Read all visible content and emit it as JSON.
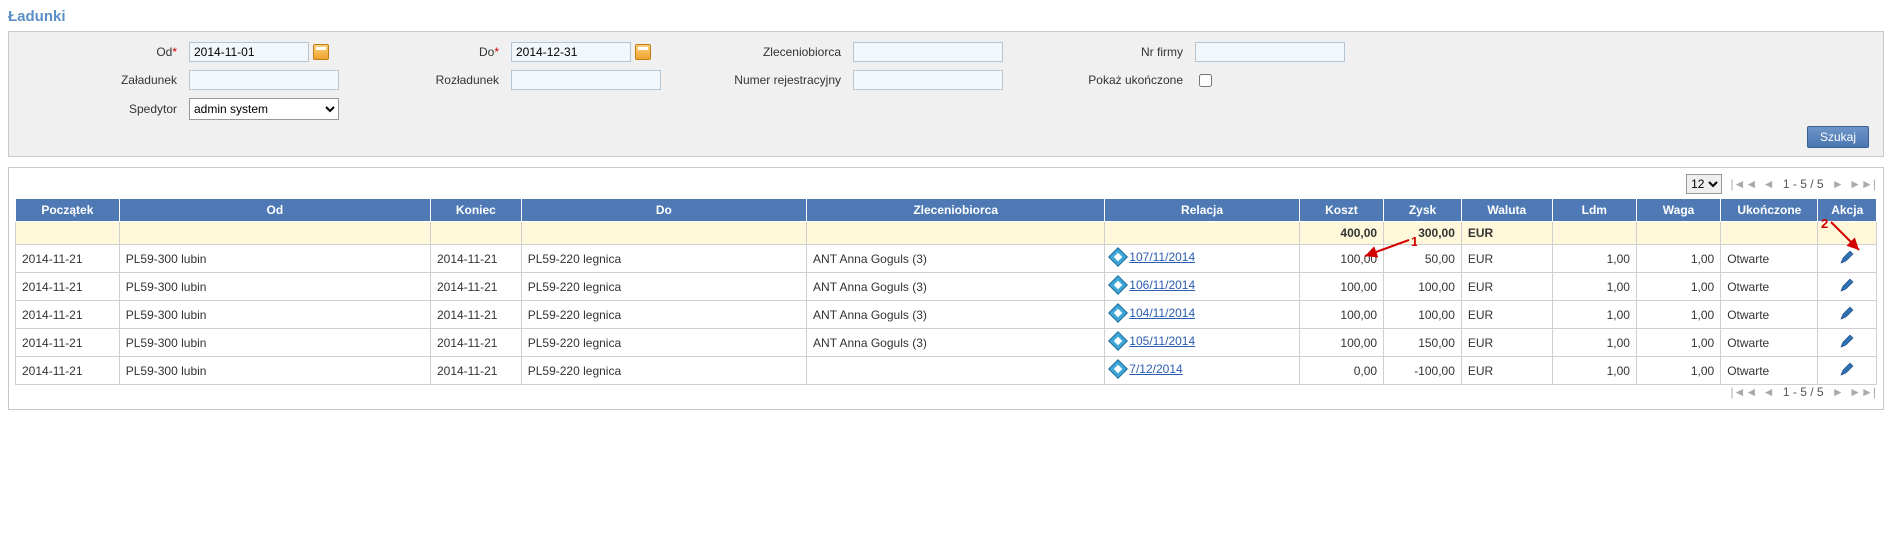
{
  "title": "Ładunki",
  "filters": {
    "od_label": "Od",
    "od_value": "2014-11-01",
    "do_label": "Do",
    "do_value": "2014-12-31",
    "zleceniobiorca_label": "Zleceniobiorca",
    "zleceniobiorca_value": "",
    "nrfirmy_label": "Nr firmy",
    "nrfirmy_value": "",
    "zaladunek_label": "Załadunek",
    "zaladunek_value": "",
    "rozladunek_label": "Rozładunek",
    "rozladunek_value": "",
    "numer_label": "Numer rejestracyjny",
    "numer_value": "",
    "pokaz_label": "Pokaż ukończone",
    "pokaz_checked": false,
    "spedytor_label": "Spedytor",
    "spedytor_value": "admin system",
    "search_label": "Szukaj"
  },
  "pager": {
    "page_size": "12",
    "range": "1 - 5 / 5"
  },
  "columns": {
    "start": "Początek",
    "from": "Od",
    "end": "Koniec",
    "to": "Do",
    "client": "Zleceniobiorca",
    "relation": "Relacja",
    "cost": "Koszt",
    "profit": "Zysk",
    "currency": "Waluta",
    "ldm": "Ldm",
    "weight": "Waga",
    "done": "Ukończone",
    "action": "Akcja"
  },
  "summary": {
    "cost": "400,00",
    "profit": "300,00",
    "currency": "EUR"
  },
  "rows": [
    {
      "start": "2014-11-21",
      "from": "PL59-300 lubin",
      "end": "2014-11-21",
      "to": "PL59-220 legnica",
      "client": "ANT Anna Goguls (3)",
      "relation": "107/11/2014",
      "cost": "100,00",
      "profit": "50,00",
      "currency": "EUR",
      "ldm": "1,00",
      "weight": "1,00",
      "done": "Otwarte"
    },
    {
      "start": "2014-11-21",
      "from": "PL59-300 lubin",
      "end": "2014-11-21",
      "to": "PL59-220 legnica",
      "client": "ANT Anna Goguls (3)",
      "relation": "106/11/2014",
      "cost": "100,00",
      "profit": "100,00",
      "currency": "EUR",
      "ldm": "1,00",
      "weight": "1,00",
      "done": "Otwarte"
    },
    {
      "start": "2014-11-21",
      "from": "PL59-300 lubin",
      "end": "2014-11-21",
      "to": "PL59-220 legnica",
      "client": "ANT Anna Goguls (3)",
      "relation": "104/11/2014",
      "cost": "100,00",
      "profit": "100,00",
      "currency": "EUR",
      "ldm": "1,00",
      "weight": "1,00",
      "done": "Otwarte"
    },
    {
      "start": "2014-11-21",
      "from": "PL59-300 lubin",
      "end": "2014-11-21",
      "to": "PL59-220 legnica",
      "client": "ANT Anna Goguls (3)",
      "relation": "105/11/2014",
      "cost": "100,00",
      "profit": "150,00",
      "currency": "EUR",
      "ldm": "1,00",
      "weight": "1,00",
      "done": "Otwarte"
    },
    {
      "start": "2014-11-21",
      "from": "PL59-300 lubin",
      "end": "2014-11-21",
      "to": "PL59-220 legnica",
      "client": "",
      "relation": "7/12/2014",
      "cost": "0,00",
      "profit": "-100,00",
      "currency": "EUR",
      "ldm": "1,00",
      "weight": "1,00",
      "done": "Otwarte"
    }
  ],
  "annotations": {
    "one": "1",
    "two": "2"
  },
  "colors": {
    "header_bg": "#4e79b4",
    "header_text": "#ffffff",
    "title_text": "#5b8fc7",
    "panel_bg": "#f0f0f0",
    "summary_bg": "#fff8db",
    "link": "#2a5db0",
    "annotation": "#d40000"
  }
}
